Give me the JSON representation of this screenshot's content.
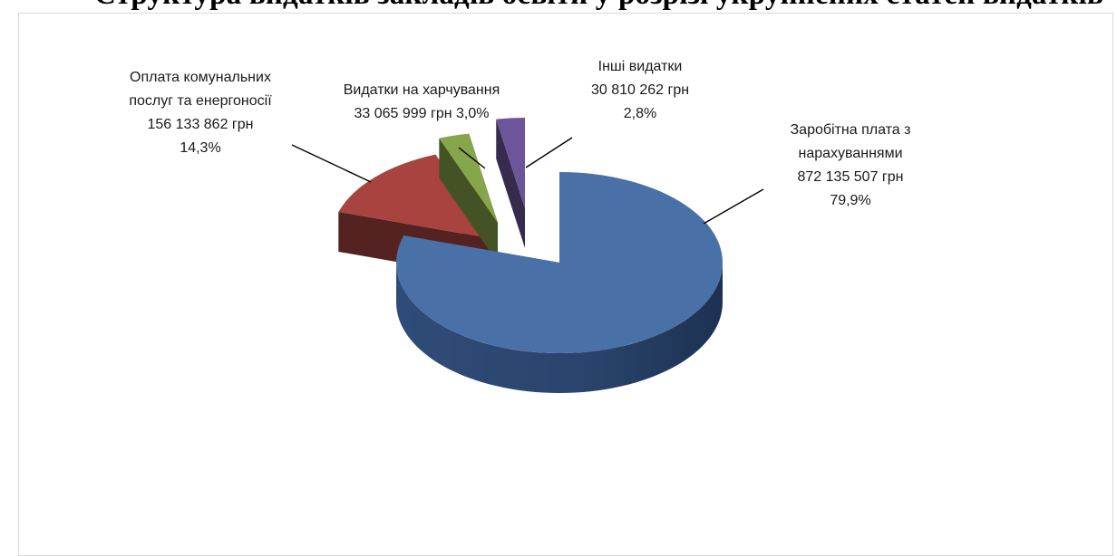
{
  "page": {
    "title": "Структура видатків закладів освіти у розрізі укрупнених статей видатків"
  },
  "chart_data": {
    "type": "pie",
    "title": "",
    "style": "3d-exploded",
    "legend": "none",
    "slices": [
      {
        "name": "Заробітна плата з нарахуваннями",
        "value": 872135507,
        "percent": 79.9,
        "color": "#4a70a8",
        "label_lines": [
          "Заробітна плата з",
          "нарахуваннями",
          "872 135 507 грн",
          "79,9%"
        ]
      },
      {
        "name": "Оплата комунальних послуг та енергоносії",
        "value": 156133862,
        "percent": 14.3,
        "color": "#a8433f",
        "label_lines": [
          "Оплата комунальних",
          "послуг та енергоносії",
          "156 133 862 грн",
          "14,3%"
        ]
      },
      {
        "name": "Видатки на харчування",
        "value": 33065999,
        "percent": 3.0,
        "color": "#87a54a",
        "label_lines": [
          "Видатки на харчування",
          "33 065 999 грн 3,0%"
        ]
      },
      {
        "name": "Інші видатки",
        "value": 30810262,
        "percent": 2.8,
        "color": "#6c559a",
        "label_lines": [
          "Інші видатки",
          "30 810 262 грн",
          "2,8%"
        ]
      }
    ]
  }
}
